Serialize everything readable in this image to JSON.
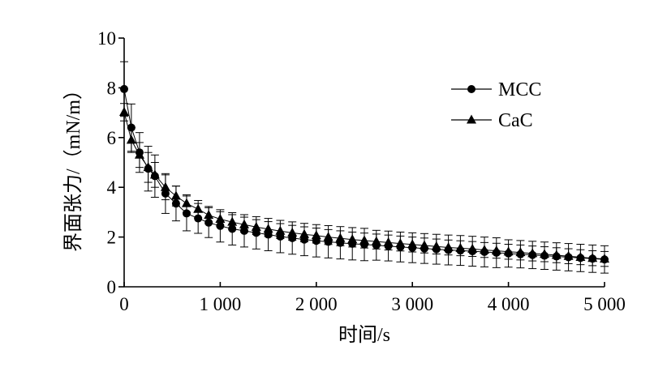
{
  "chart_data": {
    "type": "line",
    "xlabel": "时间/s",
    "ylabel": "界面张力/（mN/m）",
    "xlim": [
      0,
      5000
    ],
    "ylim": [
      0,
      10
    ],
    "x_ticks": [
      0,
      1000,
      2000,
      3000,
      4000,
      5000
    ],
    "x_tick_labels": [
      "0",
      "1 000",
      "2 000",
      "3 000",
      "4 000",
      "5 000"
    ],
    "y_ticks": [
      0,
      2,
      4,
      6,
      8,
      10
    ],
    "y_tick_labels": [
      "0",
      "2",
      "4",
      "6",
      "8",
      "10"
    ],
    "grid": false,
    "legend_position": "top-right",
    "x": [
      0,
      75,
      160,
      250,
      320,
      430,
      540,
      650,
      770,
      880,
      1000,
      1125,
      1250,
      1375,
      1500,
      1625,
      1750,
      1875,
      2000,
      2125,
      2250,
      2375,
      2500,
      2625,
      2750,
      2875,
      3000,
      3125,
      3250,
      3375,
      3500,
      3625,
      3750,
      3875,
      4000,
      4125,
      4250,
      4375,
      4500,
      4625,
      4750,
      4875,
      5000
    ],
    "series": [
      {
        "name": "MCC",
        "marker": "circle",
        "color": "#000000",
        "values": [
          7.95,
          6.4,
          5.4,
          4.75,
          4.45,
          3.75,
          3.35,
          2.95,
          2.75,
          2.58,
          2.45,
          2.33,
          2.25,
          2.17,
          2.1,
          2.02,
          1.96,
          1.9,
          1.85,
          1.81,
          1.77,
          1.73,
          1.7,
          1.67,
          1.64,
          1.6,
          1.57,
          1.54,
          1.51,
          1.48,
          1.46,
          1.43,
          1.4,
          1.37,
          1.34,
          1.31,
          1.28,
          1.25,
          1.22,
          1.19,
          1.16,
          1.13,
          1.1
        ],
        "error": [
          1.1,
          0.95,
          0.8,
          0.9,
          0.85,
          0.8,
          0.7,
          0.7,
          0.6,
          0.6,
          0.65,
          0.65,
          0.65,
          0.65,
          0.65,
          0.65,
          0.65,
          0.65,
          0.65,
          0.65,
          0.65,
          0.65,
          0.65,
          0.6,
          0.6,
          0.6,
          0.6,
          0.6,
          0.6,
          0.6,
          0.6,
          0.6,
          0.6,
          0.6,
          0.55,
          0.55,
          0.55,
          0.55,
          0.55,
          0.55,
          0.55,
          0.55,
          0.55
        ]
      },
      {
        "name": "CaC",
        "marker": "triangle",
        "color": "#000000",
        "values": [
          7.02,
          5.9,
          5.3,
          4.8,
          4.5,
          4.0,
          3.65,
          3.35,
          3.12,
          2.88,
          2.72,
          2.6,
          2.5,
          2.4,
          2.32,
          2.24,
          2.17,
          2.11,
          2.06,
          2.0,
          1.95,
          1.9,
          1.86,
          1.82,
          1.78,
          1.74,
          1.7,
          1.66,
          1.62,
          1.58,
          1.55,
          1.52,
          1.48,
          1.45,
          1.41,
          1.38,
          1.34,
          1.31,
          1.27,
          1.23,
          1.19,
          1.15,
          1.12
        ],
        "error": [
          0.35,
          0.5,
          0.5,
          0.6,
          0.5,
          0.5,
          0.4,
          0.35,
          0.35,
          0.35,
          0.3,
          0.3,
          0.3,
          0.3,
          0.3,
          0.3,
          0.3,
          0.3,
          0.3,
          0.3,
          0.3,
          0.3,
          0.3,
          0.3,
          0.3,
          0.3,
          0.3,
          0.3,
          0.3,
          0.3,
          0.3,
          0.3,
          0.3,
          0.3,
          0.3,
          0.3,
          0.3,
          0.3,
          0.3,
          0.3,
          0.3,
          0.3,
          0.3
        ]
      }
    ]
  }
}
